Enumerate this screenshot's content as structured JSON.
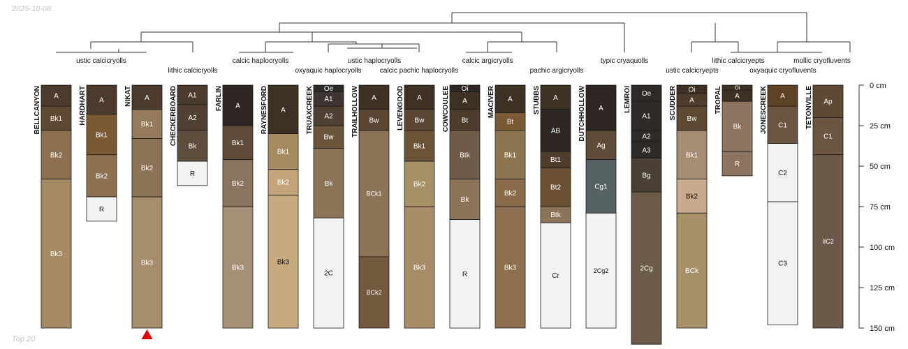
{
  "date_stamp": "2025-10-08",
  "footer_note": "Top 20",
  "chart_data": {
    "type": "soil-profile-sketch",
    "depth_axis": {
      "min": 0,
      "max": 150,
      "unit": "cm",
      "ticks": [
        0,
        25,
        50,
        75,
        100,
        125,
        150
      ]
    },
    "dendrogram_labels": [
      "ustic calcicryolls",
      "lithic calcicryolls",
      "calcic haplocryolls",
      "ustic haplocryolls",
      "oxyaquic haplocryolls",
      "calcic pachic haplocryolls",
      "calcic argicryolls",
      "pachic argicryolls",
      "typic cryaquolls",
      "lithic calcicryepts",
      "mollic cryofluvents",
      "ustic calcicryepts",
      "oxyaquic cryofluvents"
    ],
    "profiles": [
      {
        "name": "BELLCANYON",
        "horizons": [
          {
            "name": "A",
            "top": 0,
            "bottom": 13,
            "color": "#4a3b2c"
          },
          {
            "name": "Bk1",
            "top": 13,
            "bottom": 28,
            "color": "#5e4a32"
          },
          {
            "name": "Bk2",
            "top": 28,
            "bottom": 58,
            "color": "#8c7050"
          },
          {
            "name": "Bk3",
            "top": 58,
            "bottom": 150,
            "color": "#a68a64"
          }
        ]
      },
      {
        "name": "HARDHART",
        "horizons": [
          {
            "name": "A",
            "top": 0,
            "bottom": 18,
            "color": "#4a3b2c"
          },
          {
            "name": "Bk1",
            "top": 18,
            "bottom": 43,
            "color": "#7a5a34"
          },
          {
            "name": "Bk2",
            "top": 43,
            "bottom": 69,
            "color": "#8c7050"
          },
          {
            "name": "R",
            "top": 69,
            "bottom": 84,
            "color": "#f2f2f2"
          }
        ]
      },
      {
        "name": "NIKAT",
        "horizons": [
          {
            "name": "A",
            "top": 0,
            "bottom": 15,
            "color": "#4a3b2c"
          },
          {
            "name": "Bk1",
            "top": 15,
            "bottom": 33,
            "color": "#957a5c"
          },
          {
            "name": "Bk2",
            "top": 33,
            "bottom": 69,
            "color": "#8c7358"
          },
          {
            "name": "Bk3",
            "top": 69,
            "bottom": 150,
            "color": "#a68d6c"
          }
        ]
      },
      {
        "name": "CHECKERBOARD",
        "horizons": [
          {
            "name": "A1",
            "top": 0,
            "bottom": 12,
            "color": "#4a3b2c"
          },
          {
            "name": "A2",
            "top": 12,
            "bottom": 28,
            "color": "#4f4032"
          },
          {
            "name": "Bk",
            "top": 28,
            "bottom": 47,
            "color": "#5e4c3c"
          },
          {
            "name": "R",
            "top": 47,
            "bottom": 62,
            "color": "#f2f2f2"
          }
        ]
      },
      {
        "name": "FARLIN",
        "horizons": [
          {
            "name": "A",
            "top": 0,
            "bottom": 25,
            "color": "#2e2622"
          },
          {
            "name": "Bk1",
            "top": 25,
            "bottom": 46,
            "color": "#5e4c38"
          },
          {
            "name": "Bk2",
            "top": 46,
            "bottom": 75,
            "color": "#8a7660"
          },
          {
            "name": "Bk3",
            "top": 75,
            "bottom": 150,
            "color": "#a69078"
          }
        ]
      },
      {
        "name": "RAYNESFORD",
        "horizons": [
          {
            "name": "A",
            "top": 0,
            "bottom": 30,
            "color": "#3e3022"
          },
          {
            "name": "Bk1",
            "top": 30,
            "bottom": 52,
            "color": "#a68a60"
          },
          {
            "name": "Bk2",
            "top": 52,
            "bottom": 68,
            "color": "#c4a47a"
          },
          {
            "name": "Bk3",
            "top": 68,
            "bottom": 150,
            "color": "#c8aa80"
          }
        ]
      },
      {
        "name": "TRUAXCREEK",
        "horizons": [
          {
            "name": "Oe",
            "top": 0,
            "bottom": 4,
            "color": "#2e2a28"
          },
          {
            "name": "A1",
            "top": 4,
            "bottom": 13,
            "color": "#3e3430"
          },
          {
            "name": "A2",
            "top": 13,
            "bottom": 25,
            "color": "#4e4032"
          },
          {
            "name": "Bw",
            "top": 25,
            "bottom": 39,
            "color": "#6a553c"
          },
          {
            "name": "Bk",
            "top": 39,
            "bottom": 82,
            "color": "#8c7458"
          },
          {
            "name": "2C",
            "top": 82,
            "bottom": 150,
            "color": "#f2f2f2"
          }
        ]
      },
      {
        "name": "TRAILHOLLOW",
        "horizons": [
          {
            "name": "A",
            "top": 0,
            "bottom": 15,
            "color": "#3e3022"
          },
          {
            "name": "Bw",
            "top": 15,
            "bottom": 28,
            "color": "#5a4632"
          },
          {
            "name": "BCk1",
            "top": 28,
            "bottom": 106,
            "color": "#8c7458"
          },
          {
            "name": "BCk2",
            "top": 106,
            "bottom": 150,
            "color": "#735a3e"
          }
        ]
      },
      {
        "name": "LEVENGOOD",
        "horizons": [
          {
            "name": "A",
            "top": 0,
            "bottom": 15,
            "color": "#3e3022"
          },
          {
            "name": "Bw",
            "top": 15,
            "bottom": 28,
            "color": "#5a4632"
          },
          {
            "name": "Bk1",
            "top": 28,
            "bottom": 47,
            "color": "#6b5436"
          },
          {
            "name": "Bk2",
            "top": 47,
            "bottom": 75,
            "color": "#a69066"
          },
          {
            "name": "Bk3",
            "top": 75,
            "bottom": 150,
            "color": "#a88c68"
          }
        ]
      },
      {
        "name": "COWCOULEE",
        "horizons": [
          {
            "name": "Oi",
            "top": 0,
            "bottom": 4,
            "color": "#2e2622"
          },
          {
            "name": "A",
            "top": 4,
            "bottom": 15,
            "color": "#3e3022"
          },
          {
            "name": "Bt",
            "top": 15,
            "bottom": 28,
            "color": "#4e3c2c"
          },
          {
            "name": "Btk",
            "top": 28,
            "bottom": 58,
            "color": "#6e5c48"
          },
          {
            "name": "Bk",
            "top": 58,
            "bottom": 83,
            "color": "#8c7458"
          },
          {
            "name": "R",
            "top": 83,
            "bottom": 150,
            "color": "#f2f2f2"
          }
        ]
      },
      {
        "name": "MACIVER",
        "horizons": [
          {
            "name": "A",
            "top": 0,
            "bottom": 17,
            "color": "#3e3022"
          },
          {
            "name": "Bt",
            "top": 17,
            "bottom": 28,
            "color": "#7a5a34"
          },
          {
            "name": "Bk1",
            "top": 28,
            "bottom": 58,
            "color": "#8c7450"
          },
          {
            "name": "Bk2",
            "top": 58,
            "bottom": 75,
            "color": "#8a6c4a"
          },
          {
            "name": "Bk3",
            "top": 75,
            "bottom": 150,
            "color": "#8e7050"
          }
        ]
      },
      {
        "name": "STUBBS",
        "horizons": [
          {
            "name": "A",
            "top": 0,
            "bottom": 15,
            "color": "#3e3022"
          },
          {
            "name": "AB",
            "top": 15,
            "bottom": 41,
            "color": "#2e2622"
          },
          {
            "name": "Bt1",
            "top": 41,
            "bottom": 51,
            "color": "#4e3c2c"
          },
          {
            "name": "Bt2",
            "top": 51,
            "bottom": 75,
            "color": "#6b5034"
          },
          {
            "name": "Btk",
            "top": 75,
            "bottom": 85,
            "color": "#8c7458"
          },
          {
            "name": "Cr",
            "top": 85,
            "bottom": 150,
            "color": "#f2f2f2"
          }
        ]
      },
      {
        "name": "DUTCHHOLLOW",
        "horizons": [
          {
            "name": "A",
            "top": 0,
            "bottom": 28,
            "color": "#2e2622"
          },
          {
            "name": "Ag",
            "top": 28,
            "bottom": 46,
            "color": "#5e4c38"
          },
          {
            "name": "Cg1",
            "top": 46,
            "bottom": 79,
            "color": "#576264"
          },
          {
            "name": "2Cg2",
            "top": 79,
            "bottom": 150,
            "color": "#f2f2f2"
          }
        ]
      },
      {
        "name": "LEMROI",
        "horizons": [
          {
            "name": "Oe",
            "top": 0,
            "bottom": 10,
            "color": "#2e2a28"
          },
          {
            "name": "A1",
            "top": 10,
            "bottom": 28,
            "color": "#2e2a28"
          },
          {
            "name": "A2",
            "top": 28,
            "bottom": 35,
            "color": "#2e2a28"
          },
          {
            "name": "A3",
            "top": 35,
            "bottom": 45,
            "color": "#2e2a28"
          },
          {
            "name": "Bg",
            "top": 45,
            "bottom": 66,
            "color": "#4a4034"
          },
          {
            "name": "2Cg",
            "top": 66,
            "bottom": 160,
            "color": "#6b5c48"
          }
        ]
      },
      {
        "name": "SCUDDER",
        "horizons": [
          {
            "name": "Oi",
            "top": 0,
            "bottom": 5,
            "color": "#3e3022"
          },
          {
            "name": "A",
            "top": 5,
            "bottom": 13,
            "color": "#4e3c2c"
          },
          {
            "name": "Bw",
            "top": 13,
            "bottom": 28,
            "color": "#5e4a32"
          },
          {
            "name": "Bk1",
            "top": 28,
            "bottom": 58,
            "color": "#a68c72"
          },
          {
            "name": "Bk2",
            "top": 58,
            "bottom": 79,
            "color": "#c8aa8c"
          },
          {
            "name": "BCk",
            "top": 79,
            "bottom": 150,
            "color": "#a89068"
          }
        ]
      },
      {
        "name": "TROPAL",
        "horizons": [
          {
            "name": "Oi",
            "top": 0,
            "bottom": 3,
            "color": "#3e3022"
          },
          {
            "name": "A",
            "top": 3,
            "bottom": 10,
            "color": "#3e3022"
          },
          {
            "name": "Bk",
            "top": 10,
            "bottom": 41,
            "color": "#8c7460"
          },
          {
            "name": "R",
            "top": 41,
            "bottom": 56,
            "color": "#8c7460"
          }
        ]
      },
      {
        "name": "JONESCREEK",
        "horizons": [
          {
            "name": "A",
            "top": 0,
            "bottom": 13,
            "color": "#5e4224"
          },
          {
            "name": "C1",
            "top": 13,
            "bottom": 36,
            "color": "#6b5440"
          },
          {
            "name": "C2",
            "top": 36,
            "bottom": 72,
            "color": "#f2f2f2"
          },
          {
            "name": "C3",
            "top": 72,
            "bottom": 148,
            "color": "#f2f2f2"
          }
        ]
      },
      {
        "name": "TETONVILLE",
        "horizons": [
          {
            "name": "Ap",
            "top": 0,
            "bottom": 20,
            "color": "#5e4a32"
          },
          {
            "name": "C1",
            "top": 20,
            "bottom": 43,
            "color": "#6b5440"
          },
          {
            "name": "IIC2",
            "top": 43,
            "bottom": 150,
            "color": "#6b5a4a"
          }
        ]
      }
    ],
    "selected_profile": "NIKAT"
  }
}
